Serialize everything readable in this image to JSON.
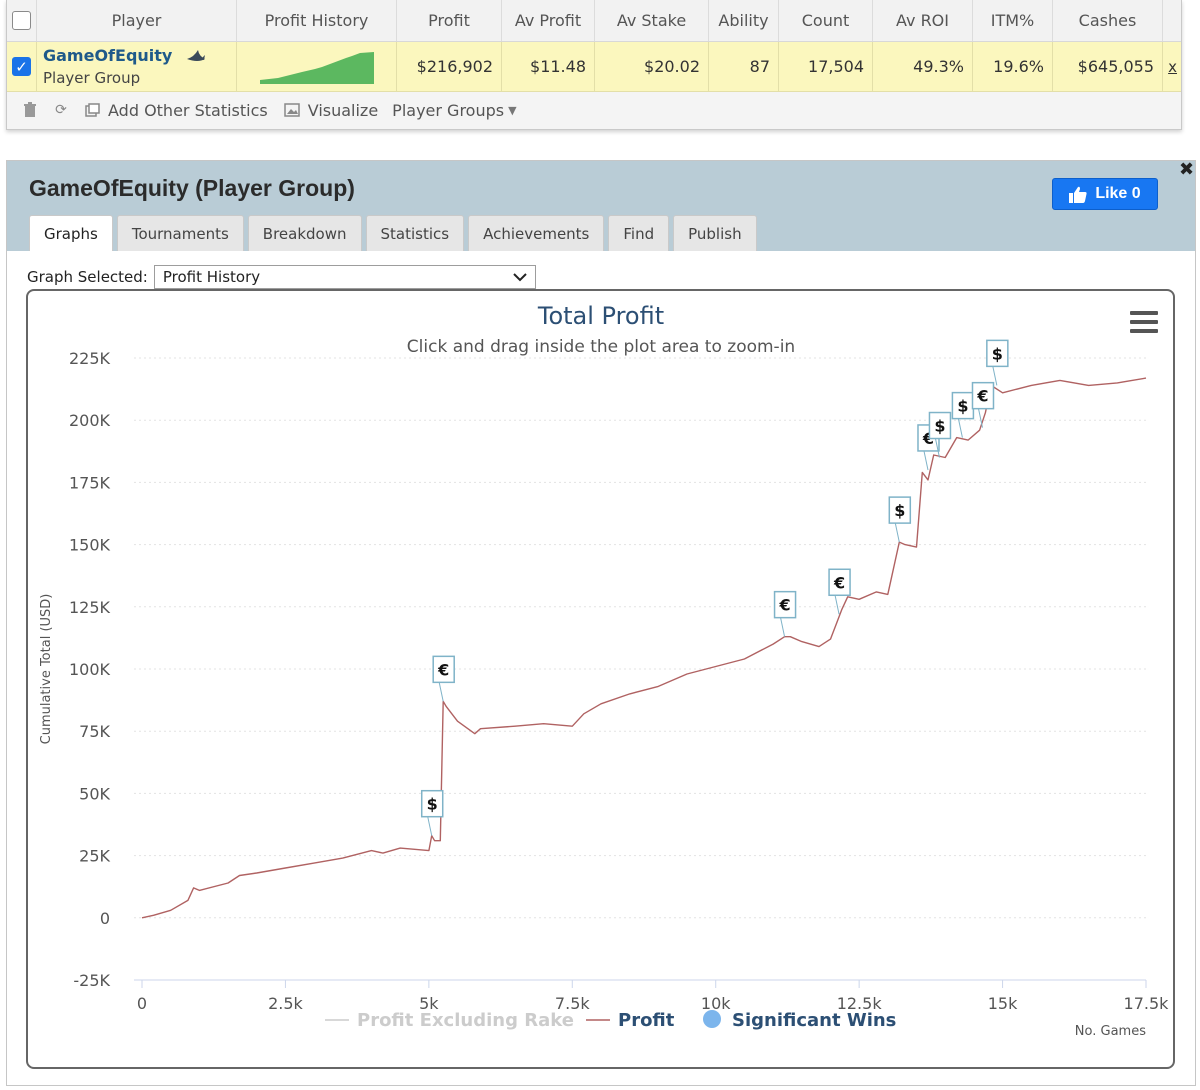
{
  "table": {
    "headers": [
      "Player",
      "Profit History",
      "Profit",
      "Av Profit",
      "Av Stake",
      "Ability",
      "Count",
      "Av ROI",
      "ITM%",
      "Cashes"
    ],
    "row": {
      "checked": true,
      "player_name": "GameOfEquity",
      "player_type": "Player Group",
      "profit": "$216,902",
      "av_profit": "$11.48",
      "av_stake": "$20.02",
      "ability": "87",
      "count": "17,504",
      "av_roi": "49.3%",
      "itm": "19.6%",
      "cashes": "$645,055",
      "remove": "x",
      "icon": "shark-icon"
    },
    "toolbar": {
      "add_stats": "Add Other Statistics",
      "visualize": "Visualize",
      "player_groups": "Player Groups"
    }
  },
  "panel": {
    "title": "GameOfEquity (Player Group)",
    "like_label": "Like 0",
    "tabs": [
      "Graphs",
      "Tournaments",
      "Breakdown",
      "Statistics",
      "Achievements",
      "Find",
      "Publish"
    ],
    "active_tab": "Graphs",
    "graph_selected_label": "Graph Selected:",
    "graph_selected_value": "Profit History"
  },
  "colors": {
    "profit_line": "#b06262",
    "marker_border": "#7fb3c8",
    "significant_wins": "#7cb5ec",
    "legend_disabled": "#cccccc",
    "legend_text": "#2c4f74"
  },
  "chart_data": {
    "type": "line",
    "title": "Total Profit",
    "subtitle": "Click and drag inside the plot area to zoom-in",
    "xlabel": "No. Games",
    "ylabel": "Cumulative Total (USD)",
    "xlim": [
      0,
      17500
    ],
    "ylim": [
      -25000,
      225000
    ],
    "xticks": [
      "0",
      "2.5k",
      "5k",
      "7.5k",
      "10k",
      "12.5k",
      "15k",
      "17.5k"
    ],
    "yticks": [
      "-25K",
      "0",
      "25K",
      "50K",
      "75K",
      "100K",
      "125K",
      "150K",
      "175K",
      "200K",
      "225K"
    ],
    "legend": [
      "Profit Excluding Rake",
      "Profit",
      "Significant Wins"
    ],
    "series": [
      {
        "name": "Profit",
        "x": [
          0,
          200,
          500,
          800,
          900,
          1000,
          1500,
          1700,
          2000,
          2500,
          3000,
          3500,
          4000,
          4200,
          4500,
          5000,
          5050,
          5100,
          5200,
          5250,
          5300,
          5500,
          5800,
          5900,
          6500,
          7000,
          7500,
          7700,
          8000,
          8500,
          9000,
          9500,
          10000,
          10500,
          11000,
          11200,
          11300,
          11500,
          11800,
          12000,
          12100,
          12200,
          12300,
          12500,
          12800,
          13000,
          13200,
          13300,
          13500,
          13600,
          13700,
          13800,
          14000,
          14200,
          14400,
          14600,
          14700,
          14800,
          15000,
          15500,
          16000,
          16500,
          17000,
          17500
        ],
        "y": [
          0,
          1000,
          3000,
          7000,
          12000,
          11000,
          14000,
          17000,
          18000,
          20000,
          22000,
          24000,
          27000,
          26000,
          28000,
          27000,
          33000,
          31000,
          31000,
          87000,
          85000,
          79000,
          74000,
          76000,
          77000,
          78000,
          77000,
          82000,
          86000,
          90000,
          93000,
          98000,
          101000,
          104000,
          110000,
          113000,
          113000,
          111000,
          109000,
          112000,
          118000,
          124000,
          129000,
          128000,
          131000,
          130000,
          151000,
          150000,
          149000,
          179000,
          176000,
          186000,
          185000,
          193000,
          192000,
          196000,
          203000,
          214000,
          211000,
          214000,
          216000,
          214000,
          215000,
          216902
        ]
      }
    ],
    "significant_wins": [
      {
        "x": 5050,
        "y": 33000,
        "currency": "$"
      },
      {
        "x": 5250,
        "y": 87000,
        "currency": "€"
      },
      {
        "x": 11200,
        "y": 113000,
        "currency": "€"
      },
      {
        "x": 12150,
        "y": 122000,
        "currency": "€"
      },
      {
        "x": 13200,
        "y": 151000,
        "currency": "$"
      },
      {
        "x": 13700,
        "y": 180000,
        "currency": "€"
      },
      {
        "x": 13900,
        "y": 185000,
        "currency": "$"
      },
      {
        "x": 14300,
        "y": 193000,
        "currency": "$"
      },
      {
        "x": 14650,
        "y": 197000,
        "currency": "€"
      },
      {
        "x": 14900,
        "y": 214000,
        "currency": "$"
      }
    ]
  }
}
